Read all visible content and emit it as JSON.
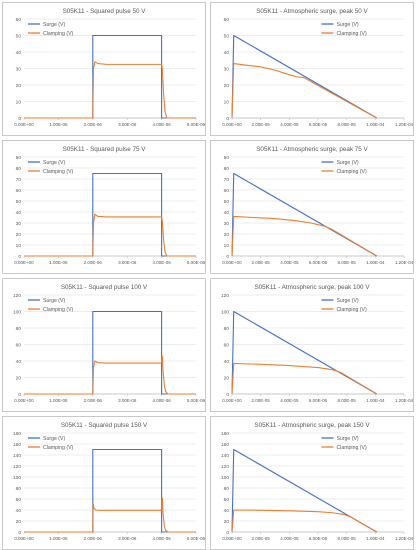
{
  "colors": {
    "surge": "#4472c4",
    "clamping": "#ed7d31",
    "grid": "#d9d9d9",
    "axis": "#bfbfbf",
    "text": "#595959",
    "frame": "#c9c9c9"
  },
  "chart_data": [
    {
      "type": "line",
      "title": "S05K11 - Squared pulse 50 V",
      "legend_position": "top-left",
      "grid": true,
      "xlim": [
        0,
        5e-06
      ],
      "ylim": [
        0,
        60
      ],
      "x_ticks": [
        0,
        1e-06,
        2e-06,
        3e-06,
        4e-06,
        5e-06
      ],
      "x_tick_labels": [
        "0.00E+00",
        "1.00E-06",
        "2.00E-06",
        "3.00E-06",
        "4.00E-06",
        "5.00E-06"
      ],
      "y_ticks": [
        0,
        10,
        20,
        30,
        40,
        50,
        60
      ],
      "y_tick_labels": [
        "0",
        "10",
        "20",
        "30",
        "40",
        "50",
        "60"
      ],
      "series": [
        {
          "name": "Surge (V)",
          "color": "surge",
          "x": [
            0,
            2e-06,
            2e-06,
            4e-06,
            4e-06,
            5e-06
          ],
          "y": [
            0,
            0,
            50,
            50,
            0,
            0
          ]
        },
        {
          "name": "Clamping (V)",
          "color": "clamping",
          "x": [
            0,
            2e-06,
            2.02e-06,
            2.06e-06,
            2.15e-06,
            2.4e-06,
            3.6e-06,
            3.95e-06,
            4e-06,
            4.02e-06,
            4.06e-06,
            4.1e-06,
            4.15e-06,
            5e-06
          ],
          "y": [
            0,
            0,
            30,
            34,
            33,
            32.5,
            32.5,
            32.5,
            32.5,
            30,
            14,
            4,
            0,
            0
          ]
        }
      ]
    },
    {
      "type": "line",
      "title": "S05K11 - Atmospheric surge, peak 50 V",
      "legend_position": "top-right",
      "grid": true,
      "xlim": [
        0,
        0.00012
      ],
      "ylim": [
        0,
        60
      ],
      "x_ticks": [
        0,
        2e-05,
        4e-05,
        6e-05,
        8e-05,
        0.0001,
        0.00012
      ],
      "x_tick_labels": [
        "0.00E+00",
        "2.00E-05",
        "4.00E-05",
        "6.00E-05",
        "8.00E-05",
        "1.00E-04",
        "1.20E-04"
      ],
      "y_ticks": [
        0,
        10,
        20,
        30,
        40,
        50,
        60
      ],
      "y_tick_labels": [
        "0",
        "10",
        "20",
        "30",
        "40",
        "50",
        "60"
      ],
      "series": [
        {
          "name": "Surge (V)",
          "color": "surge",
          "x": [
            0,
            1.2e-06,
            0.000101
          ],
          "y": [
            0,
            50,
            0
          ]
        },
        {
          "name": "Clamping (V)",
          "color": "clamping",
          "x": [
            0,
            1.2e-06,
            1e-05,
            2e-05,
            3e-05,
            3.7e-05,
            4.5e-05,
            5e-05,
            0.000101
          ],
          "y": [
            0,
            33,
            32,
            31,
            29,
            27,
            25,
            24.5,
            0
          ]
        }
      ]
    },
    {
      "type": "line",
      "title": "S05K11 - Squared pulse 75 V",
      "legend_position": "top-left",
      "grid": true,
      "xlim": [
        0,
        5e-06
      ],
      "ylim": [
        0,
        90
      ],
      "x_ticks": [
        0,
        1e-06,
        2e-06,
        3e-06,
        4e-06,
        5e-06
      ],
      "x_tick_labels": [
        "0.00E+00",
        "1.00E-06",
        "2.00E-06",
        "3.00E-06",
        "4.00E-06",
        "5.00E-06"
      ],
      "y_ticks": [
        0,
        10,
        20,
        30,
        40,
        50,
        60,
        70,
        80,
        90
      ],
      "y_tick_labels": [
        "0",
        "10",
        "20",
        "30",
        "40",
        "50",
        "60",
        "70",
        "80",
        "90"
      ],
      "series": [
        {
          "name": "Surge (V)",
          "color": "surge",
          "x": [
            0,
            2e-06,
            2e-06,
            4e-06,
            4e-06,
            5e-06
          ],
          "y": [
            0,
            0,
            75,
            75,
            0,
            0
          ]
        },
        {
          "name": "Clamping (V)",
          "color": "clamping",
          "x": [
            0,
            2e-06,
            2.02e-06,
            2.06e-06,
            2.15e-06,
            2.4e-06,
            3.6e-06,
            3.95e-06,
            4e-06,
            4.02e-06,
            4.06e-06,
            4.1e-06,
            4.15e-06,
            5e-06
          ],
          "y": [
            0,
            0,
            30,
            38,
            36,
            35.5,
            35.5,
            35.5,
            35.5,
            32,
            14,
            4,
            0,
            0
          ]
        }
      ]
    },
    {
      "type": "line",
      "title": "S05K11 - Atmospheric surge, peak 75 V",
      "legend_position": "top-right",
      "grid": true,
      "xlim": [
        0,
        0.00012
      ],
      "ylim": [
        0,
        90
      ],
      "x_ticks": [
        0,
        2e-05,
        4e-05,
        6e-05,
        8e-05,
        0.0001,
        0.00012
      ],
      "x_tick_labels": [
        "0.00E+00",
        "2.00E-05",
        "4.00E-05",
        "6.00E-05",
        "8.00E-05",
        "1.00E-04",
        "1.20E-04"
      ],
      "y_ticks": [
        0,
        10,
        20,
        30,
        40,
        50,
        60,
        70,
        80,
        90
      ],
      "y_tick_labels": [
        "0",
        "10",
        "20",
        "30",
        "40",
        "50",
        "60",
        "70",
        "80",
        "90"
      ],
      "series": [
        {
          "name": "Surge (V)",
          "color": "surge",
          "x": [
            0,
            1.2e-06,
            0.000101
          ],
          "y": [
            0,
            75,
            0
          ]
        },
        {
          "name": "Clamping (V)",
          "color": "clamping",
          "x": [
            0,
            1.2e-06,
            1.5e-05,
            3e-05,
            4.5e-05,
            5.5e-05,
            6.5e-05,
            7e-05,
            0.000101
          ],
          "y": [
            0,
            36,
            35,
            34,
            32,
            30,
            27,
            24,
            0
          ]
        }
      ]
    },
    {
      "type": "line",
      "title": "S05K11 - Squared pulse 100 V",
      "legend_position": "top-left",
      "grid": true,
      "xlim": [
        0,
        5e-06
      ],
      "ylim": [
        0,
        120
      ],
      "x_ticks": [
        0,
        1e-06,
        2e-06,
        3e-06,
        4e-06,
        5e-06
      ],
      "x_tick_labels": [
        "0.00E+00",
        "1.00E-06",
        "2.00E-06",
        "3.00E-06",
        "4.00E-06",
        "5.00E-06"
      ],
      "y_ticks": [
        0,
        20,
        40,
        60,
        80,
        100,
        120
      ],
      "y_tick_labels": [
        "0",
        "20",
        "40",
        "60",
        "80",
        "100",
        "120"
      ],
      "series": [
        {
          "name": "Surge (V)",
          "color": "surge",
          "x": [
            0,
            2e-06,
            2e-06,
            4e-06,
            4e-06,
            5e-06
          ],
          "y": [
            0,
            0,
            100,
            100,
            0,
            0
          ]
        },
        {
          "name": "Clamping (V)",
          "color": "clamping",
          "x": [
            0,
            2e-06,
            2.02e-06,
            2.06e-06,
            2.15e-06,
            2.4e-06,
            3.6e-06,
            3.95e-06,
            4e-06,
            4.02e-06,
            4.04e-06,
            4.08e-06,
            4.12e-06,
            4.18e-06,
            5e-06
          ],
          "y": [
            0,
            0,
            32,
            40,
            38,
            37.5,
            37.5,
            37.5,
            37.5,
            46,
            30,
            10,
            3,
            0,
            0
          ]
        }
      ]
    },
    {
      "type": "line",
      "title": "S05K11 - Atmospheric surge, peak 100 V",
      "legend_position": "top-right",
      "grid": true,
      "xlim": [
        0,
        0.00012
      ],
      "ylim": [
        0,
        120
      ],
      "x_ticks": [
        0,
        2e-05,
        4e-05,
        6e-05,
        8e-05,
        0.0001,
        0.00012
      ],
      "x_tick_labels": [
        "0.00E+00",
        "2.00E-05",
        "4.00E-05",
        "6.00E-05",
        "8.00E-05",
        "1.00E-04",
        "1.20E-04"
      ],
      "y_ticks": [
        0,
        20,
        40,
        60,
        80,
        100,
        120
      ],
      "y_tick_labels": [
        "0",
        "20",
        "40",
        "60",
        "80",
        "100",
        "120"
      ],
      "series": [
        {
          "name": "Surge (V)",
          "color": "surge",
          "x": [
            0,
            1.2e-06,
            0.000101
          ],
          "y": [
            0,
            100,
            0
          ]
        },
        {
          "name": "Clamping (V)",
          "color": "clamping",
          "x": [
            0,
            1.2e-06,
            2e-05,
            4e-05,
            6e-05,
            7e-05,
            7.6e-05,
            0.000101
          ],
          "y": [
            0,
            37,
            36,
            34.5,
            32,
            29.5,
            26,
            0
          ]
        }
      ]
    },
    {
      "type": "line",
      "title": "S05K11 - Squared pulse 150 V",
      "legend_position": "top-left",
      "grid": true,
      "xlim": [
        0,
        5e-06
      ],
      "ylim": [
        0,
        180
      ],
      "x_ticks": [
        0,
        1e-06,
        2e-06,
        3e-06,
        4e-06,
        5e-06
      ],
      "x_tick_labels": [
        "0.00E+00",
        "1.00E-06",
        "2.00E-06",
        "3.00E-06",
        "4.00E-06",
        "5.00E-06"
      ],
      "y_ticks": [
        0,
        20,
        40,
        60,
        80,
        100,
        120,
        140,
        160,
        180
      ],
      "y_tick_labels": [
        "0",
        "20",
        "40",
        "60",
        "80",
        "100",
        "120",
        "140",
        "160",
        "180"
      ],
      "series": [
        {
          "name": "Surge (V)",
          "color": "surge",
          "x": [
            0,
            2e-06,
            2e-06,
            4e-06,
            4e-06,
            5e-06
          ],
          "y": [
            0,
            0,
            150,
            150,
            0,
            0
          ]
        },
        {
          "name": "Clamping (V)",
          "color": "clamping",
          "x": [
            0,
            2e-06,
            2.01e-06,
            2.03e-06,
            2.08e-06,
            2.2e-06,
            3.6e-06,
            3.95e-06,
            4e-06,
            4.02e-06,
            4.04e-06,
            4.08e-06,
            4.12e-06,
            4.18e-06,
            5e-06
          ],
          "y": [
            0,
            0,
            52,
            44,
            40,
            39.5,
            39.5,
            39.5,
            39.5,
            62,
            35,
            10,
            3,
            0,
            0
          ]
        }
      ]
    },
    {
      "type": "line",
      "title": "S05K11 - Atmospheric surge, peak 150 V",
      "legend_position": "top-right",
      "grid": true,
      "xlim": [
        0,
        0.00012
      ],
      "ylim": [
        0,
        180
      ],
      "x_ticks": [
        0,
        2e-05,
        4e-05,
        6e-05,
        8e-05,
        0.0001,
        0.00012
      ],
      "x_tick_labels": [
        "0.00E+00",
        "2.00E-05",
        "4.00E-05",
        "6.00E-05",
        "8.00E-05",
        "1.00E-04",
        "1.20E-04"
      ],
      "y_ticks": [
        0,
        20,
        40,
        60,
        80,
        100,
        120,
        140,
        160,
        180
      ],
      "y_tick_labels": [
        "0",
        "20",
        "40",
        "60",
        "80",
        "100",
        "120",
        "140",
        "160",
        "180"
      ],
      "series": [
        {
          "name": "Surge (V)",
          "color": "surge",
          "x": [
            0,
            1.2e-06,
            0.000101
          ],
          "y": [
            0,
            150,
            0
          ]
        },
        {
          "name": "Clamping (V)",
          "color": "clamping",
          "x": [
            0,
            1.2e-06,
            2e-05,
            4e-05,
            6e-05,
            7e-05,
            7.8e-05,
            8.3e-05,
            0.000101
          ],
          "y": [
            0,
            40,
            39.5,
            38.5,
            37,
            35,
            32,
            27,
            0
          ]
        }
      ]
    }
  ]
}
